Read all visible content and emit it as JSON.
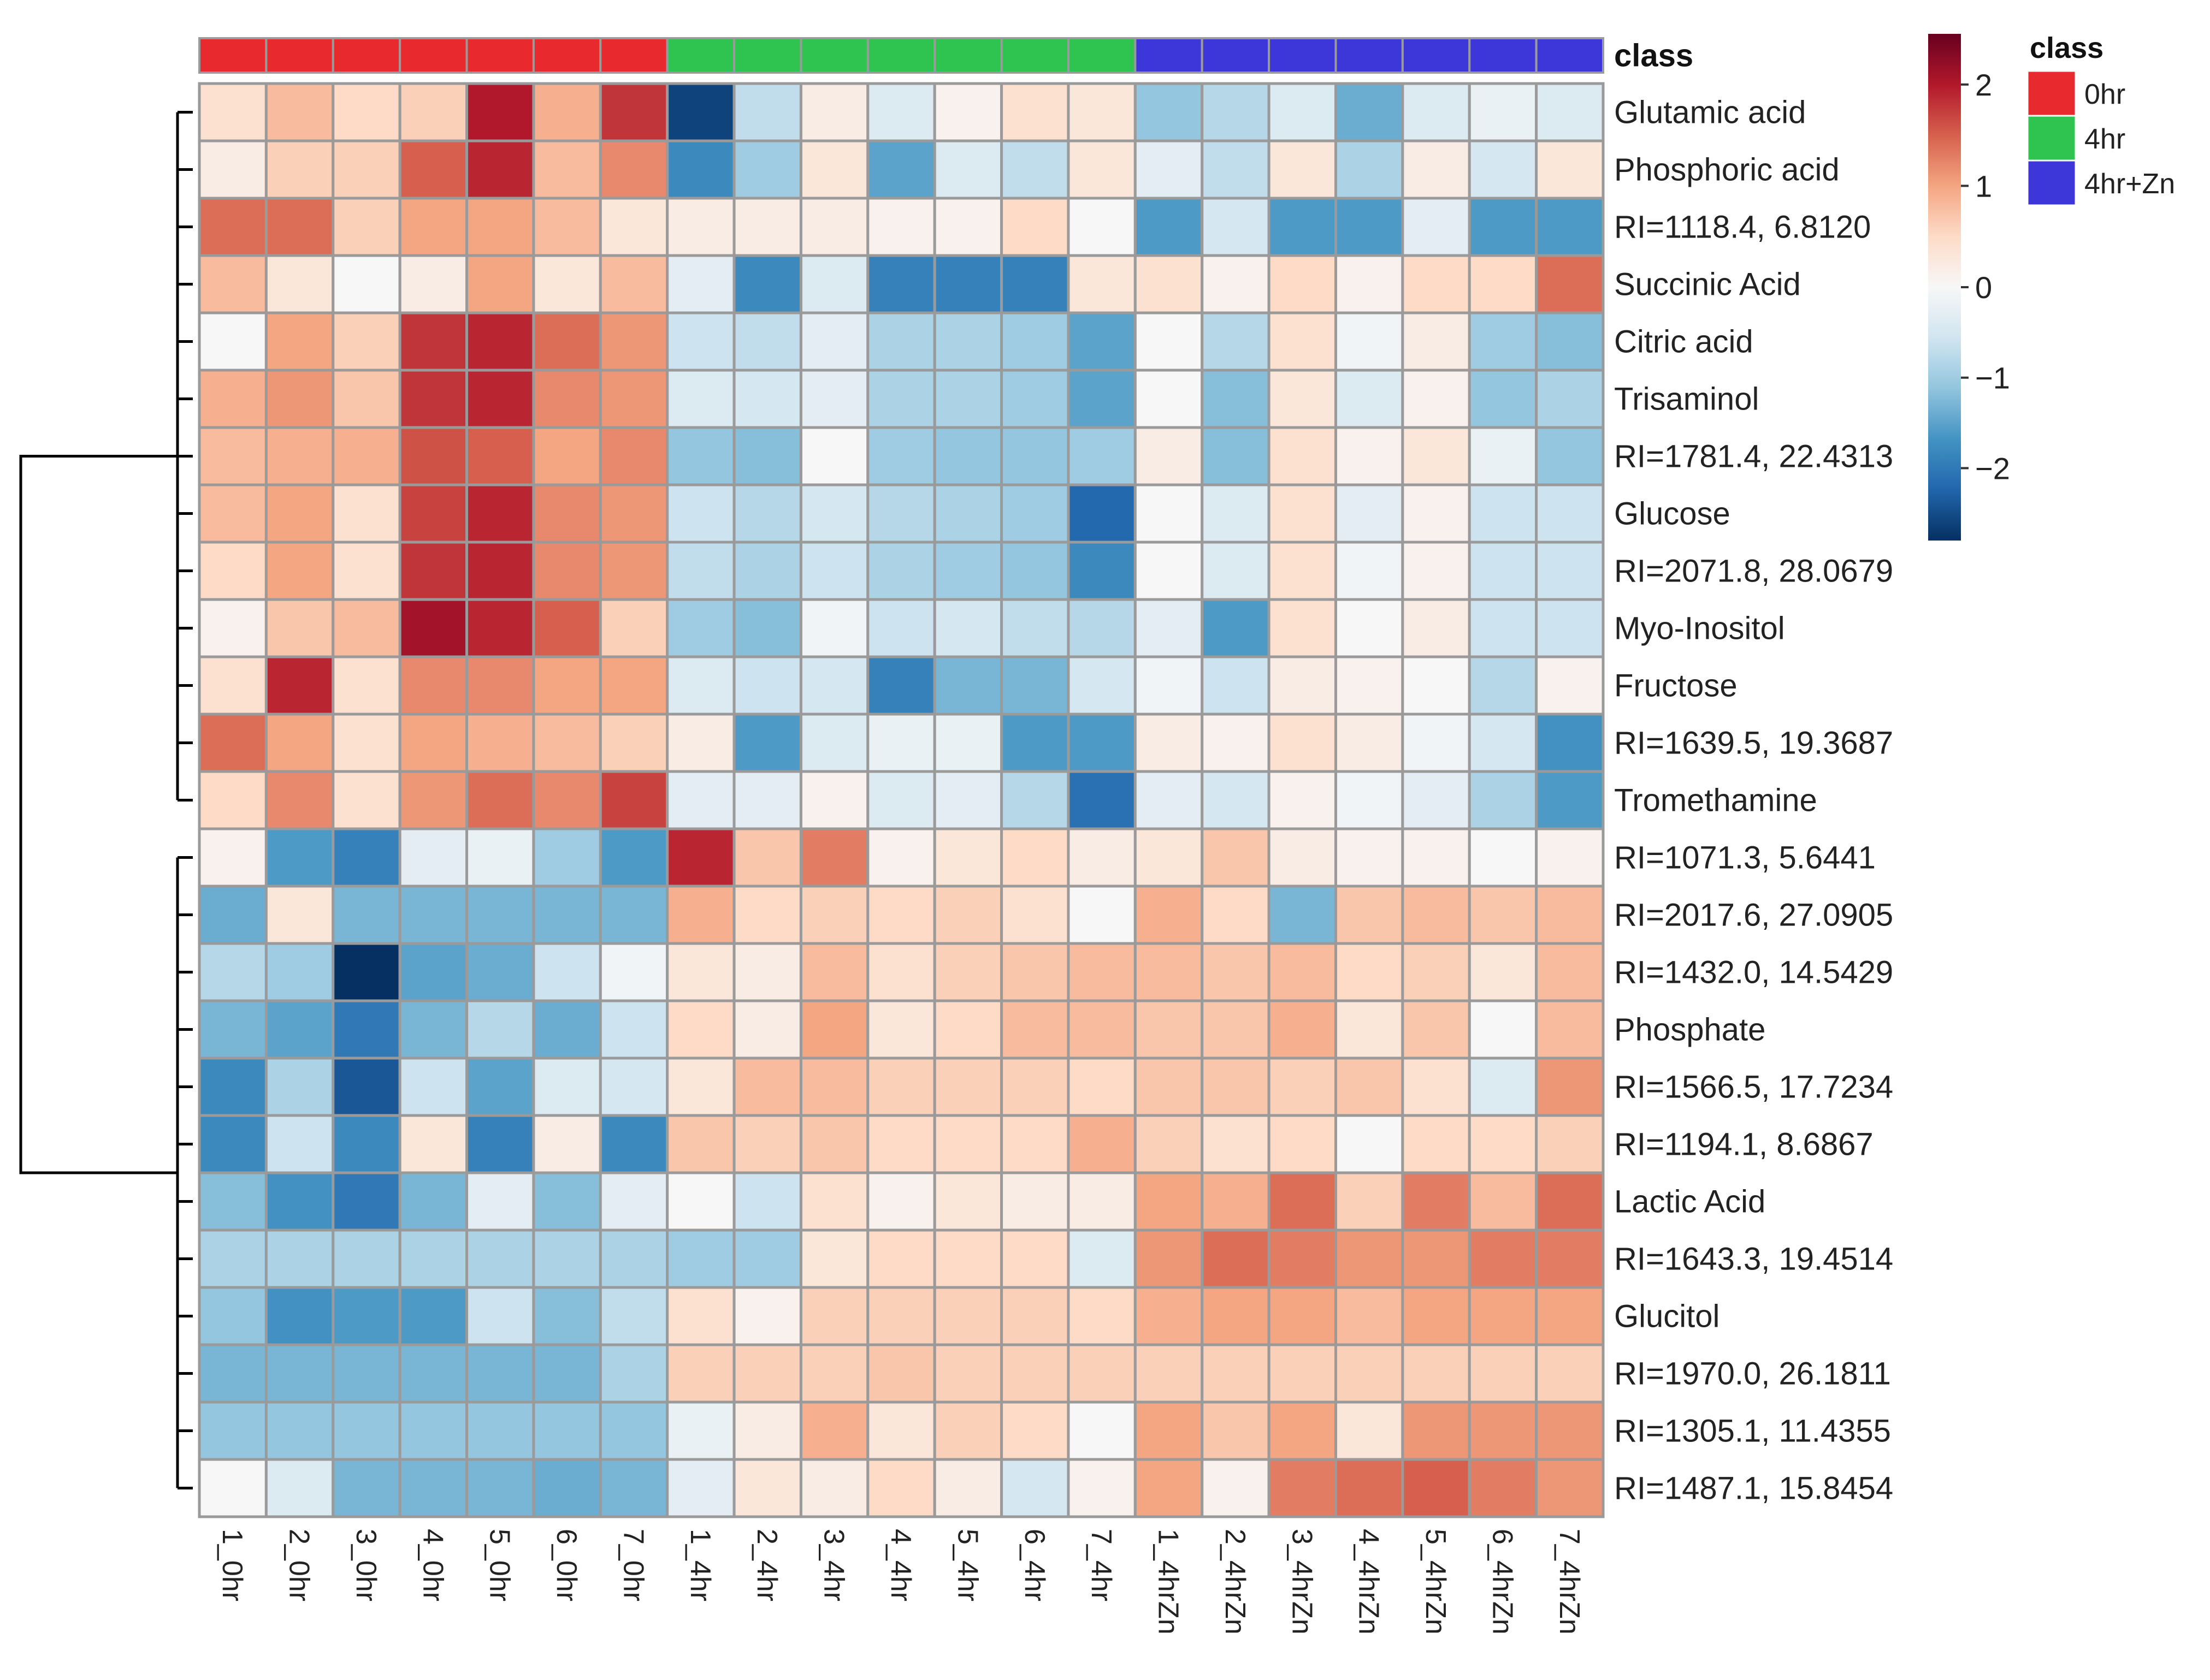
{
  "chart_data": {
    "type": "heatmap",
    "title": "",
    "columns": [
      "1_0hr",
      "2_0hr",
      "3_0hr",
      "4_0hr",
      "5_0hr",
      "6_0hr",
      "7_0hr",
      "1_4hr",
      "2_4hr",
      "3_4hr",
      "4_4hr",
      "5_4hr",
      "6_4hr",
      "7_4hr",
      "1_4hrZn",
      "2_4hrZn",
      "3_4hrZn",
      "4_4hrZn",
      "5_4hrZn",
      "6_4hrZn",
      "7_4hrZn"
    ],
    "column_classes": [
      "0hr",
      "0hr",
      "0hr",
      "0hr",
      "0hr",
      "0hr",
      "0hr",
      "4hr",
      "4hr",
      "4hr",
      "4hr",
      "4hr",
      "4hr",
      "4hr",
      "4hr+Zn",
      "4hr+Zn",
      "4hr+Zn",
      "4hr+Zn",
      "4hr+Zn",
      "4hr+Zn",
      "4hr+Zn"
    ],
    "annotation_label": "class",
    "rows": [
      "Glutamic acid",
      "Phosphoric acid",
      "RI=1118.4, 6.8120",
      "Succinic Acid",
      "Citric acid",
      "Trisaminol",
      "RI=1781.4, 22.4313",
      "Glucose",
      "RI=2071.8, 28.0679",
      "Myo-Inositol",
      "Fructose",
      "RI=1639.5, 19.3687",
      "Tromethamine",
      "RI=1071.3, 5.6441",
      "RI=2017.6, 27.0905",
      "RI=1432.0, 14.5429",
      "Phosphate",
      "RI=1566.5, 17.7234",
      "RI=1194.1, 8.6867",
      "Lactic Acid",
      "RI=1643.3, 19.4514",
      "Glucitol",
      "RI=1970.0, 26.1811",
      "RI=1305.1, 11.4355",
      "RI=1487.1, 15.8454"
    ],
    "values": [
      [
        0.4,
        0.8,
        0.5,
        0.6,
        2.0,
        0.9,
        1.8,
        -2.6,
        -0.7,
        0.2,
        -0.4,
        0.1,
        0.4,
        0.3,
        -1.1,
        -0.8,
        -0.4,
        -1.4,
        -0.4,
        -0.2,
        -0.4
      ],
      [
        0.2,
        0.6,
        0.6,
        1.5,
        1.9,
        0.8,
        1.2,
        -1.8,
        -1.0,
        0.3,
        -1.5,
        -0.4,
        -0.7,
        0.3,
        -0.3,
        -0.7,
        0.3,
        -0.9,
        0.2,
        -0.5,
        0.3
      ],
      [
        1.4,
        1.4,
        0.6,
        1.0,
        1.0,
        0.8,
        0.3,
        0.2,
        0.2,
        0.2,
        0.1,
        0.1,
        0.5,
        0.0,
        -1.6,
        -0.5,
        -1.6,
        -1.6,
        -0.3,
        -1.6,
        -1.6
      ],
      [
        0.8,
        0.3,
        0.0,
        0.2,
        1.0,
        0.3,
        0.8,
        -0.3,
        -1.8,
        -0.4,
        -1.9,
        -1.9,
        -1.9,
        0.3,
        0.4,
        0.1,
        0.5,
        0.1,
        0.5,
        0.5,
        1.4
      ],
      [
        0.0,
        1.0,
        0.6,
        1.8,
        1.9,
        1.4,
        1.1,
        -0.6,
        -0.7,
        -0.3,
        -0.9,
        -0.9,
        -1.0,
        -1.5,
        0.0,
        -0.8,
        0.4,
        -0.1,
        0.2,
        -1.0,
        -1.2
      ],
      [
        0.9,
        1.1,
        0.7,
        1.8,
        1.9,
        1.2,
        1.1,
        -0.4,
        -0.5,
        -0.3,
        -0.9,
        -0.9,
        -1.0,
        -1.5,
        0.0,
        -1.2,
        0.3,
        -0.4,
        0.1,
        -1.1,
        -0.9
      ],
      [
        0.8,
        0.9,
        0.9,
        1.6,
        1.5,
        1.0,
        1.2,
        -1.1,
        -1.2,
        0.0,
        -1.0,
        -1.1,
        -1.1,
        -1.0,
        0.2,
        -1.2,
        0.4,
        0.1,
        0.3,
        -0.2,
        -1.1
      ],
      [
        0.8,
        1.0,
        0.4,
        1.7,
        1.9,
        1.2,
        1.1,
        -0.6,
        -0.8,
        -0.5,
        -0.8,
        -0.9,
        -1.0,
        -2.2,
        0.0,
        -0.4,
        0.4,
        -0.3,
        0.1,
        -0.6,
        -0.6
      ],
      [
        0.5,
        1.0,
        0.4,
        1.8,
        1.9,
        1.2,
        1.1,
        -0.7,
        -0.9,
        -0.6,
        -0.9,
        -1.0,
        -1.1,
        -1.8,
        0.0,
        -0.4,
        0.4,
        -0.1,
        0.1,
        -0.6,
        -0.6
      ],
      [
        0.1,
        0.7,
        0.8,
        2.1,
        1.9,
        1.5,
        0.6,
        -1.0,
        -1.2,
        -0.1,
        -0.6,
        -0.5,
        -0.7,
        -0.8,
        -0.3,
        -1.6,
        0.4,
        0.0,
        0.2,
        -0.6,
        -0.6
      ],
      [
        0.4,
        1.9,
        0.4,
        1.2,
        1.2,
        1.0,
        1.0,
        -0.4,
        -0.6,
        -0.5,
        -1.9,
        -1.3,
        -1.3,
        -0.5,
        -0.1,
        -0.6,
        0.2,
        0.1,
        0.0,
        -0.8,
        0.1
      ],
      [
        1.4,
        1.0,
        0.4,
        1.0,
        0.9,
        0.8,
        0.6,
        0.2,
        -1.6,
        -0.4,
        -0.2,
        -0.2,
        -1.6,
        -1.6,
        0.2,
        0.1,
        0.4,
        0.2,
        -0.1,
        -0.5,
        -1.7
      ],
      [
        0.5,
        1.2,
        0.4,
        1.1,
        1.4,
        1.2,
        1.7,
        -0.3,
        -0.3,
        0.1,
        -0.4,
        -0.3,
        -0.8,
        -2.1,
        -0.3,
        -0.5,
        0.1,
        -0.1,
        -0.3,
        -0.9,
        -1.6
      ],
      [
        0.1,
        -1.6,
        -1.9,
        -0.3,
        -0.2,
        -1.0,
        -1.6,
        1.9,
        0.7,
        1.3,
        0.1,
        0.3,
        0.5,
        0.2,
        0.3,
        0.7,
        0.2,
        0.1,
        0.1,
        0.0,
        0.1
      ],
      [
        -1.4,
        0.3,
        -1.3,
        -1.3,
        -1.3,
        -1.3,
        -1.3,
        0.9,
        0.5,
        0.6,
        0.5,
        0.6,
        0.4,
        0.0,
        0.9,
        0.5,
        -1.3,
        0.7,
        0.8,
        0.7,
        0.8
      ],
      [
        -0.8,
        -1.0,
        -2.9,
        -1.5,
        -1.4,
        -0.6,
        -0.1,
        0.3,
        0.2,
        0.8,
        0.4,
        0.6,
        0.7,
        0.8,
        0.8,
        0.7,
        0.8,
        0.5,
        0.6,
        0.3,
        0.8
      ],
      [
        -1.3,
        -1.5,
        -2.0,
        -1.3,
        -0.8,
        -1.4,
        -0.6,
        0.5,
        0.2,
        1.0,
        0.3,
        0.5,
        0.8,
        0.8,
        0.7,
        0.7,
        0.9,
        0.3,
        0.7,
        0.0,
        0.8
      ],
      [
        -1.8,
        -0.9,
        -2.4,
        -0.6,
        -1.5,
        -0.4,
        -0.5,
        0.3,
        0.8,
        0.8,
        0.6,
        0.6,
        0.6,
        0.5,
        0.7,
        0.7,
        0.6,
        0.7,
        0.4,
        -0.4,
        1.1
      ],
      [
        -1.8,
        -0.6,
        -1.8,
        0.3,
        -1.9,
        0.2,
        -1.8,
        0.7,
        0.6,
        0.7,
        0.5,
        0.5,
        0.5,
        0.9,
        0.6,
        0.4,
        0.5,
        0.0,
        0.5,
        0.5,
        0.6
      ],
      [
        -1.2,
        -1.7,
        -2.0,
        -1.3,
        -0.3,
        -1.2,
        -0.3,
        0.0,
        -0.6,
        0.4,
        0.1,
        0.3,
        0.2,
        0.2,
        1.0,
        0.9,
        1.4,
        0.6,
        1.3,
        0.8,
        1.4
      ],
      [
        -0.9,
        -0.9,
        -0.9,
        -0.9,
        -0.9,
        -0.9,
        -0.9,
        -1.0,
        -1.0,
        0.3,
        0.5,
        0.5,
        0.5,
        -0.4,
        1.1,
        1.4,
        1.3,
        1.1,
        1.1,
        1.3,
        1.3
      ],
      [
        -1.1,
        -1.7,
        -1.6,
        -1.6,
        -0.6,
        -1.2,
        -0.7,
        0.4,
        0.1,
        0.6,
        0.6,
        0.6,
        0.6,
        0.5,
        0.9,
        1.0,
        1.0,
        0.8,
        1.0,
        1.0,
        1.0
      ],
      [
        -1.3,
        -1.3,
        -1.3,
        -1.3,
        -1.3,
        -1.3,
        -0.9,
        0.6,
        0.6,
        0.6,
        0.7,
        0.6,
        0.6,
        0.6,
        0.6,
        0.6,
        0.6,
        0.6,
        0.6,
        0.6,
        0.6
      ],
      [
        -1.1,
        -1.1,
        -1.1,
        -1.1,
        -1.1,
        -1.1,
        -1.1,
        -0.2,
        0.2,
        0.9,
        0.3,
        0.6,
        0.5,
        0.0,
        1.0,
        0.7,
        1.0,
        0.3,
        1.1,
        1.1,
        1.1
      ],
      [
        0.0,
        -0.4,
        -1.3,
        -1.3,
        -1.3,
        -1.4,
        -1.3,
        -0.3,
        0.3,
        0.2,
        0.5,
        0.2,
        -0.5,
        0.1,
        1.0,
        0.1,
        1.3,
        1.4,
        1.5,
        1.3,
        1.1
      ]
    ],
    "classes": [
      {
        "name": "0hr",
        "color": "#e8292d"
      },
      {
        "name": "4hr",
        "color": "#2ec44f"
      },
      {
        "name": "4hr+Zn",
        "color": "#3d37d9"
      }
    ],
    "legend_title": "class",
    "colorbar": {
      "range": [
        -2.8,
        2.5
      ],
      "ticks": [
        2,
        1,
        0,
        -1,
        -2
      ],
      "tick_labels": [
        "2",
        "1",
        "0",
        "−1",
        "−2"
      ],
      "colors": [
        "#053061",
        "#2166ac",
        "#4393c3",
        "#92c5de",
        "#d1e5f0",
        "#f7f7f7",
        "#fddbc7",
        "#f4a582",
        "#d6604d",
        "#b2182b",
        "#67001f"
      ]
    },
    "legend_position": "top-right",
    "row_dendrogram": "left"
  }
}
